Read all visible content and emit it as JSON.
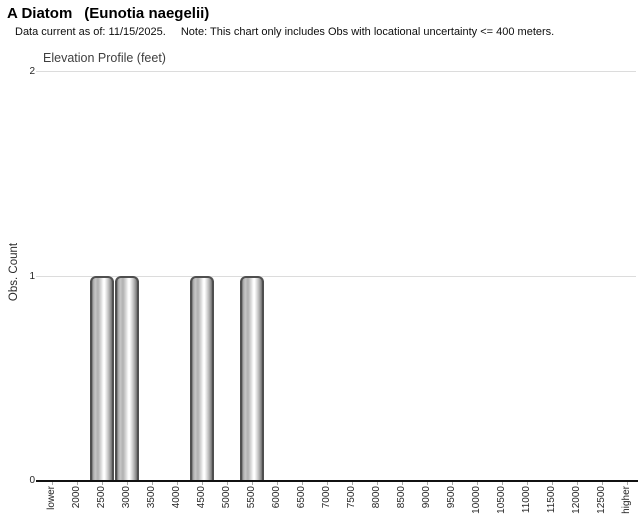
{
  "header": {
    "title_common": "A Diatom",
    "title_scientific": "(Eunotia naegelii)",
    "subtitle_data_current": "Data current as of: 11/15/2025.",
    "subtitle_note": "Note: This chart only includes Obs with locational uncertainty <= 400 meters."
  },
  "chart_data": {
    "type": "bar",
    "title": "Elevation Profile (feet)",
    "xlabel": "",
    "ylabel": "Obs. Count",
    "categories": [
      "lower",
      "2000",
      "2500",
      "3000",
      "3500",
      "4000",
      "4500",
      "5000",
      "5500",
      "6000",
      "6500",
      "7000",
      "7500",
      "8000",
      "8500",
      "9000",
      "9500",
      "10000",
      "10500",
      "11000",
      "11500",
      "12000",
      "12500",
      "higher"
    ],
    "values": [
      0,
      0,
      1,
      1,
      0,
      0,
      1,
      0,
      1,
      0,
      0,
      0,
      0,
      0,
      0,
      0,
      0,
      0,
      0,
      0,
      0,
      0,
      0,
      0
    ],
    "ylim": [
      0,
      2
    ],
    "yticks": [
      0,
      1,
      2
    ],
    "grid": "horizontal",
    "legend": "none",
    "colors": {
      "bar_border": "#4f4f4f",
      "bar_base": "#9a9a9a",
      "bar_highlight": "#ffffff",
      "gridline": "#dcdcdc",
      "axis_line": "#111111",
      "tick_mark": "#aaaaaa",
      "tick_text": "#262626",
      "chart_title_text": "#3f3f3f",
      "header_text": "#000000",
      "background": "#ffffff"
    }
  }
}
